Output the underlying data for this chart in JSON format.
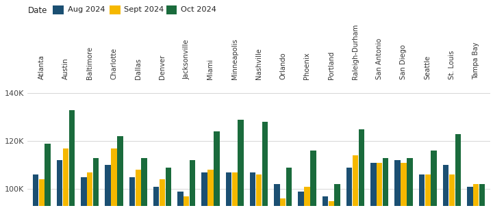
{
  "cities": [
    "Atlanta",
    "Austin",
    "Baltimore",
    "Charlotte",
    "Dallas",
    "Denver",
    "Jacksonville",
    "Miami",
    "Minneapolis",
    "Nashville",
    "Orlando",
    "Phoenix",
    "Portland",
    "Raleigh-Durham",
    "San Antonio",
    "San Diego",
    "Seattle",
    "St. Louis",
    "Tampa Bay"
  ],
  "aug_2024": [
    106000,
    112000,
    105000,
    110000,
    105000,
    101000,
    99000,
    107000,
    107000,
    107000,
    102000,
    99000,
    97000,
    109000,
    111000,
    112000,
    106000,
    110000,
    101000
  ],
  "sept_2024": [
    104000,
    117000,
    107000,
    117000,
    108000,
    104000,
    97000,
    108000,
    107000,
    106000,
    96000,
    101000,
    95000,
    114000,
    111000,
    111000,
    106000,
    106000,
    102000
  ],
  "oct_2024": [
    119000,
    133000,
    113000,
    122000,
    113000,
    109000,
    112000,
    124000,
    129000,
    128000,
    109000,
    116000,
    102000,
    125000,
    113000,
    113000,
    116000,
    123000,
    102000
  ],
  "colors": {
    "aug": "#1b4f72",
    "sept": "#f5b800",
    "oct": "#1a6b3c"
  },
  "ylim": [
    93000,
    145000
  ],
  "yticks": [
    100000,
    120000,
    140000
  ],
  "legend_labels": [
    "Aug 2024",
    "Sept 2024",
    "Oct 2024"
  ],
  "legend_title": "Date",
  "background_color": "#ffffff",
  "grid_color": "#d0d0d0"
}
